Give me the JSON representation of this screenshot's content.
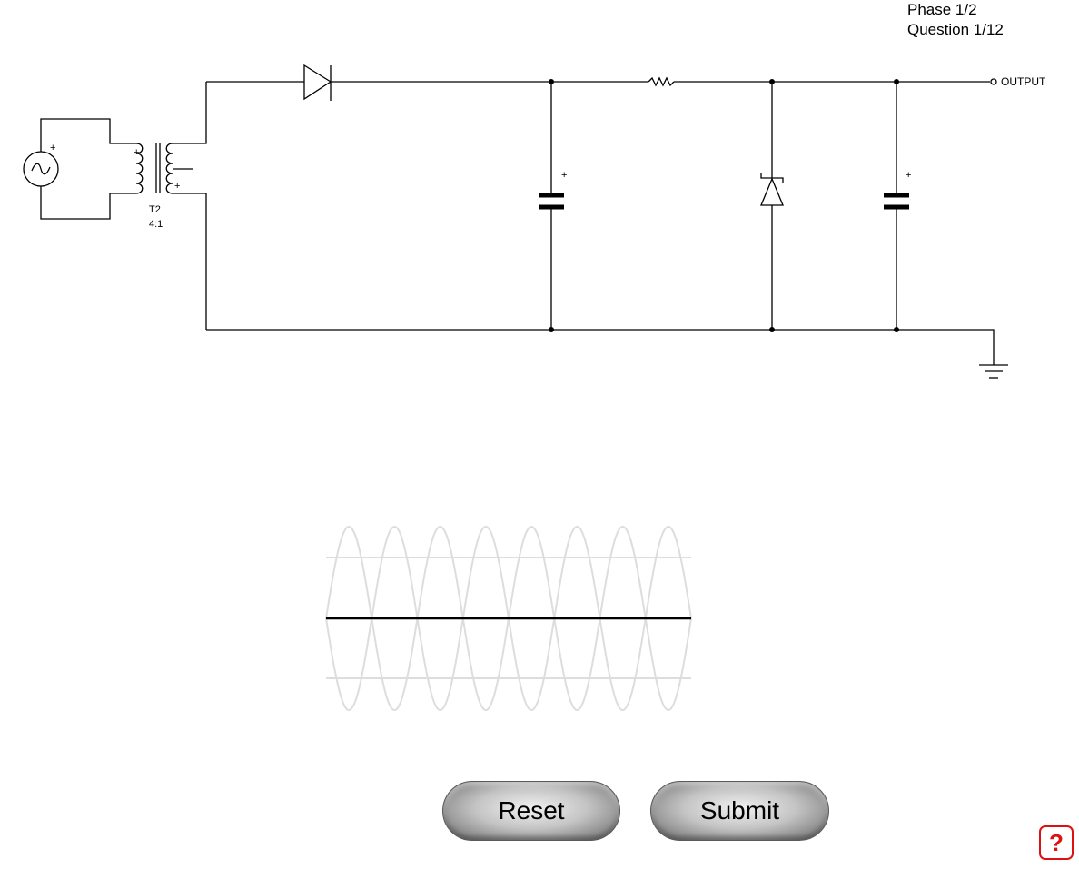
{
  "progress": {
    "phase": "Phase 1/2",
    "question": "Question 1/12"
  },
  "circuit": {
    "transformer_label": "T2",
    "transformer_ratio": "4:1",
    "output_label": "OUTPUT",
    "polarity_mark": "+"
  },
  "waveform": {
    "cycles": 4,
    "line_level": 0
  },
  "buttons": {
    "reset_label": "Reset",
    "submit_label": "Submit",
    "help_label": "?"
  },
  "colors": {
    "wire": "#000000",
    "guide": "#dddddd",
    "help_accent": "#dd1111"
  }
}
